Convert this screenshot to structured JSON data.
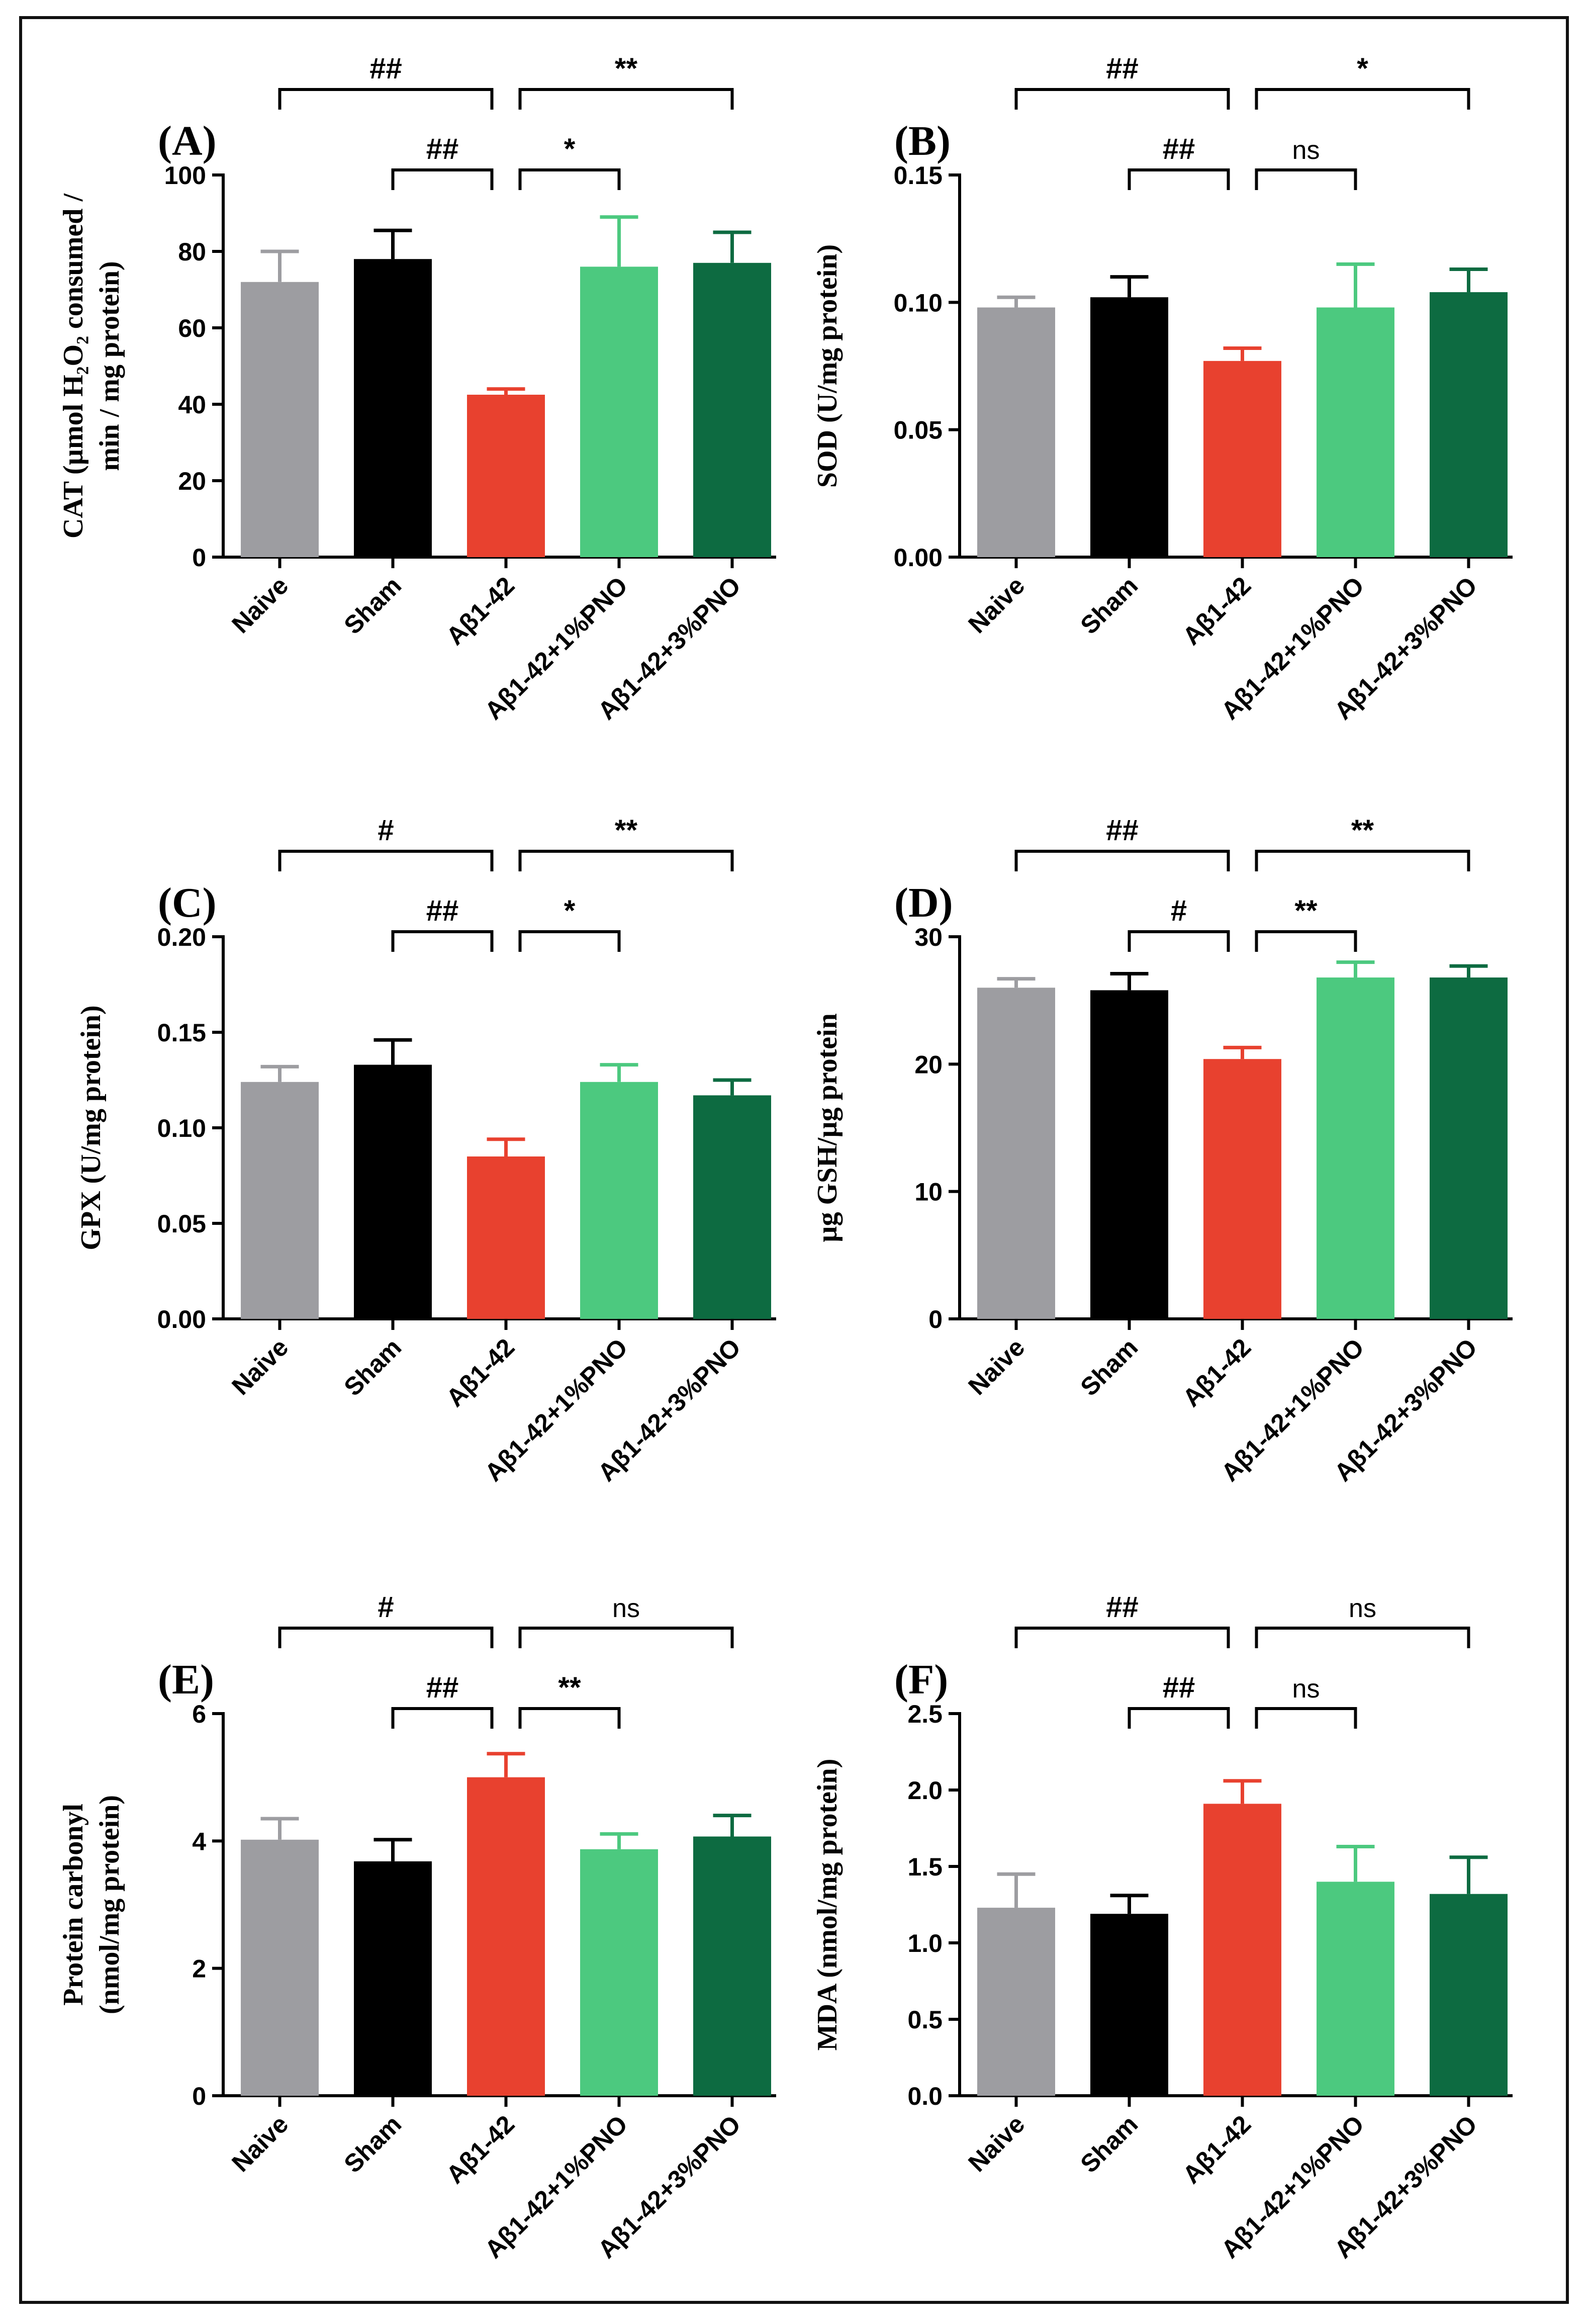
{
  "colors": {
    "naive": "#9d9da1",
    "sham": "#000000",
    "abeta": "#e8412f",
    "pno1": "#4cc97f",
    "pno3": "#0d6b41",
    "axis": "#000000"
  },
  "chart_data": [
    {
      "type": "bar",
      "panel": "(A)",
      "ylabel_lines": [
        "CAT (µmol H₂O₂ consumed /",
        "min / mg protein)"
      ],
      "categories": [
        "Naive",
        "Sham",
        "Aβ1-42",
        "Aβ1-42+1%PNO",
        "Aβ1-42+3%PNO"
      ],
      "values": [
        72,
        78,
        42.5,
        76,
        77
      ],
      "errors": [
        8,
        7.5,
        1.5,
        13,
        8
      ],
      "ylim": [
        0,
        100
      ],
      "yticks": [
        0,
        20,
        40,
        60,
        80,
        100
      ],
      "tick_labels": [
        "0",
        "20",
        "40",
        "60",
        "80",
        "100"
      ],
      "comparisons": [
        {
          "from": 0,
          "to": 2,
          "label": "##",
          "level": 2
        },
        {
          "from": 2,
          "to": 4,
          "label": "**",
          "level": 2
        },
        {
          "from": 1,
          "to": 2,
          "label": "##",
          "level": 1
        },
        {
          "from": 2,
          "to": 3,
          "label": "*",
          "level": 1
        }
      ]
    },
    {
      "type": "bar",
      "panel": "(B)",
      "ylabel_lines": [
        "SOD (U/mg protein)"
      ],
      "categories": [
        "Naive",
        "Sham",
        "Aβ1-42",
        "Aβ1-42+1%PNO",
        "Aβ1-42+3%PNO"
      ],
      "values": [
        0.098,
        0.102,
        0.077,
        0.098,
        0.104
      ],
      "errors": [
        0.004,
        0.008,
        0.005,
        0.017,
        0.009
      ],
      "ylim": [
        0,
        0.15
      ],
      "yticks": [
        0,
        0.05,
        0.1,
        0.15
      ],
      "tick_labels": [
        "0.00",
        "0.05",
        "0.10",
        "0.15"
      ],
      "comparisons": [
        {
          "from": 0,
          "to": 2,
          "label": "##",
          "level": 2
        },
        {
          "from": 2,
          "to": 4,
          "label": "*",
          "level": 2
        },
        {
          "from": 1,
          "to": 2,
          "label": "##",
          "level": 1
        },
        {
          "from": 2,
          "to": 3,
          "label": "ns",
          "level": 1
        }
      ]
    },
    {
      "type": "bar",
      "panel": "(C)",
      "ylabel_lines": [
        "GPX (U/mg protein)"
      ],
      "categories": [
        "Naive",
        "Sham",
        "Aβ1-42",
        "Aβ1-42+1%PNO",
        "Aβ1-42+3%PNO"
      ],
      "values": [
        0.124,
        0.133,
        0.085,
        0.124,
        0.117
      ],
      "errors": [
        0.008,
        0.013,
        0.009,
        0.009,
        0.008
      ],
      "ylim": [
        0,
        0.2
      ],
      "yticks": [
        0,
        0.05,
        0.1,
        0.15,
        0.2
      ],
      "tick_labels": [
        "0.00",
        "0.05",
        "0.10",
        "0.15",
        "0.20"
      ],
      "comparisons": [
        {
          "from": 0,
          "to": 2,
          "label": "#",
          "level": 2
        },
        {
          "from": 2,
          "to": 4,
          "label": "**",
          "level": 2
        },
        {
          "from": 1,
          "to": 2,
          "label": "##",
          "level": 1
        },
        {
          "from": 2,
          "to": 3,
          "label": "*",
          "level": 1
        }
      ]
    },
    {
      "type": "bar",
      "panel": "(D)",
      "ylabel_lines": [
        "µg GSH/µg protein"
      ],
      "categories": [
        "Naive",
        "Sham",
        "Aβ1-42",
        "Aβ1-42+1%PNO",
        "Aβ1-42+3%PNO"
      ],
      "values": [
        26,
        25.8,
        20.4,
        26.8,
        26.8
      ],
      "errors": [
        0.7,
        1.3,
        0.9,
        1.2,
        0.9
      ],
      "ylim": [
        0,
        30
      ],
      "yticks": [
        0,
        10,
        20,
        30
      ],
      "tick_labels": [
        "0",
        "10",
        "20",
        "30"
      ],
      "comparisons": [
        {
          "from": 0,
          "to": 2,
          "label": "##",
          "level": 2
        },
        {
          "from": 2,
          "to": 4,
          "label": "**",
          "level": 2
        },
        {
          "from": 1,
          "to": 2,
          "label": "#",
          "level": 1
        },
        {
          "from": 2,
          "to": 3,
          "label": "**",
          "level": 1
        }
      ]
    },
    {
      "type": "bar",
      "panel": "(E)",
      "ylabel_lines": [
        "Protein carbonyl",
        "(nmol/mg protein)"
      ],
      "categories": [
        "Naive",
        "Sham",
        "Aβ1-42",
        "Aβ1-42+1%PNO",
        "Aβ1-42+3%PNO"
      ],
      "values": [
        4.02,
        3.68,
        5.0,
        3.87,
        4.07
      ],
      "errors": [
        0.33,
        0.34,
        0.37,
        0.24,
        0.33
      ],
      "ylim": [
        0,
        6
      ],
      "yticks": [
        0,
        2,
        4,
        6
      ],
      "tick_labels": [
        "0",
        "2",
        "4",
        "6"
      ],
      "comparisons": [
        {
          "from": 0,
          "to": 2,
          "label": "#",
          "level": 2
        },
        {
          "from": 2,
          "to": 4,
          "label": "ns",
          "level": 2
        },
        {
          "from": 1,
          "to": 2,
          "label": "##",
          "level": 1
        },
        {
          "from": 2,
          "to": 3,
          "label": "**",
          "level": 1
        }
      ]
    },
    {
      "type": "bar",
      "panel": "(F)",
      "ylabel_lines": [
        "MDA (nmol/mg protein)"
      ],
      "categories": [
        "Naive",
        "Sham",
        "Aβ1-42",
        "Aβ1-42+1%PNO",
        "Aβ1-42+3%PNO"
      ],
      "values": [
        1.23,
        1.19,
        1.91,
        1.4,
        1.32
      ],
      "errors": [
        0.22,
        0.12,
        0.15,
        0.23,
        0.24
      ],
      "ylim": [
        0,
        2.5
      ],
      "yticks": [
        0,
        0.5,
        1,
        1.5,
        2,
        2.5
      ],
      "tick_labels": [
        "0.0",
        "0.5",
        "1.0",
        "1.5",
        "2.0",
        "2.5"
      ],
      "comparisons": [
        {
          "from": 0,
          "to": 2,
          "label": "##",
          "level": 2
        },
        {
          "from": 2,
          "to": 4,
          "label": "ns",
          "level": 2
        },
        {
          "from": 1,
          "to": 2,
          "label": "##",
          "level": 1
        },
        {
          "from": 2,
          "to": 3,
          "label": "ns",
          "level": 1
        }
      ]
    }
  ]
}
